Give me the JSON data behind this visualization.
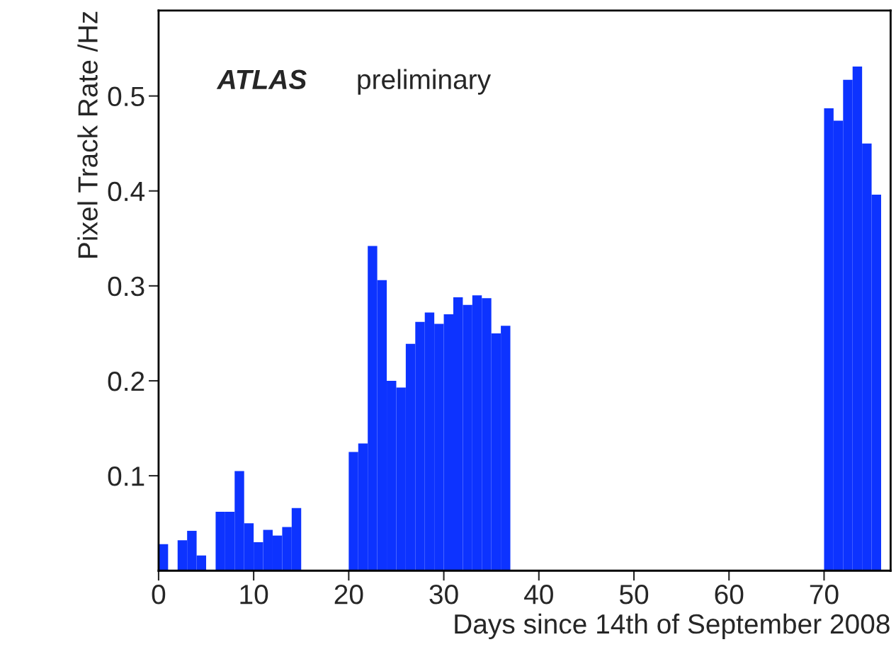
{
  "chart_data": {
    "type": "histogram",
    "xlabel": "Days since 14th of September 2008",
    "ylabel": "Pixel Track Rate /Hz",
    "annotations": [
      "ATLAS",
      "preliminary"
    ],
    "bins": [
      0,
      1,
      2,
      3,
      4,
      5,
      6,
      7,
      8,
      9,
      10,
      11,
      12,
      13,
      14,
      15,
      16,
      17,
      18,
      19,
      20,
      21,
      22,
      23,
      24,
      25,
      26,
      27,
      28,
      29,
      30,
      31,
      32,
      33,
      34,
      35,
      36,
      37,
      38,
      39,
      40,
      41,
      42,
      43,
      44,
      45,
      46,
      47,
      48,
      49,
      50,
      51,
      52,
      53,
      54,
      55,
      56,
      57,
      58,
      59,
      60,
      61,
      62,
      63,
      64,
      65,
      66,
      67,
      68,
      69,
      70,
      71,
      72,
      73,
      74,
      75,
      76,
      77
    ],
    "values": [
      0.028,
      0,
      0.032,
      0.042,
      0.016,
      0,
      0.062,
      0.062,
      0.105,
      0.05,
      0.03,
      0.043,
      0.037,
      0.046,
      0.066,
      0,
      0,
      0,
      0,
      0,
      0.125,
      0.134,
      0.342,
      0.306,
      0.2,
      0.193,
      0.239,
      0.262,
      0.272,
      0.26,
      0.27,
      0.288,
      0.28,
      0.29,
      0.287,
      0.25,
      0.258,
      0,
      0,
      0,
      0,
      0,
      0,
      0,
      0,
      0,
      0,
      0,
      0,
      0,
      0,
      0,
      0,
      0,
      0,
      0,
      0,
      0,
      0,
      0,
      0,
      0,
      0,
      0,
      0,
      0,
      0,
      0,
      0,
      0,
      0.487,
      0.474,
      0.517,
      0.531,
      0.45,
      0.396,
      0
    ],
    "color": "#0d33ff",
    "xlim": [
      0,
      77
    ],
    "ylim": [
      0,
      0.59
    ],
    "xticks": [
      0,
      10,
      20,
      30,
      40,
      50,
      60,
      70
    ],
    "yticks": [
      0.1,
      0.2,
      0.3,
      0.4,
      0.5
    ],
    "grid": false,
    "legend": false
  }
}
